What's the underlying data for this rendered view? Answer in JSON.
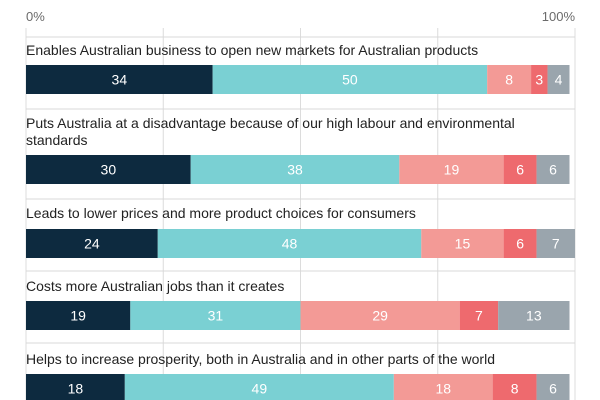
{
  "chart_data": {
    "type": "bar",
    "orientation": "horizontal",
    "stacked": true,
    "axis": {
      "min_label": "0%",
      "max_label": "100%",
      "range": [
        0,
        100
      ]
    },
    "series_colors": [
      "#0d2a3f",
      "#7ad0d3",
      "#f39a96",
      "#ee6a6e",
      "#9aa5ad"
    ],
    "categories": [
      "Enables Australian business to open new markets for Australian products",
      "Puts Australia at a disadvantage because of our high labour and environmental standards",
      "Leads to lower prices and more product choices for consumers",
      "Costs more Australian jobs than it creates",
      "Helps to increase prosperity, both in Australia and in other parts of the world"
    ],
    "category_lines": [
      [
        "Enables Australian business to open new markets for Australian products"
      ],
      [
        "Puts Australia at a disadvantage because of our high labour and environmental",
        "standards"
      ],
      [
        "Leads to lower prices and more product choices for consumers"
      ],
      [
        "Costs more Australian jobs than it creates"
      ],
      [
        "Helps to increase prosperity, both in Australia and in other parts of the world"
      ]
    ],
    "values": [
      [
        34,
        50,
        8,
        3,
        4
      ],
      [
        30,
        38,
        19,
        6,
        6
      ],
      [
        24,
        48,
        15,
        6,
        7
      ],
      [
        19,
        31,
        29,
        7,
        13
      ],
      [
        18,
        49,
        18,
        8,
        6
      ]
    ]
  }
}
